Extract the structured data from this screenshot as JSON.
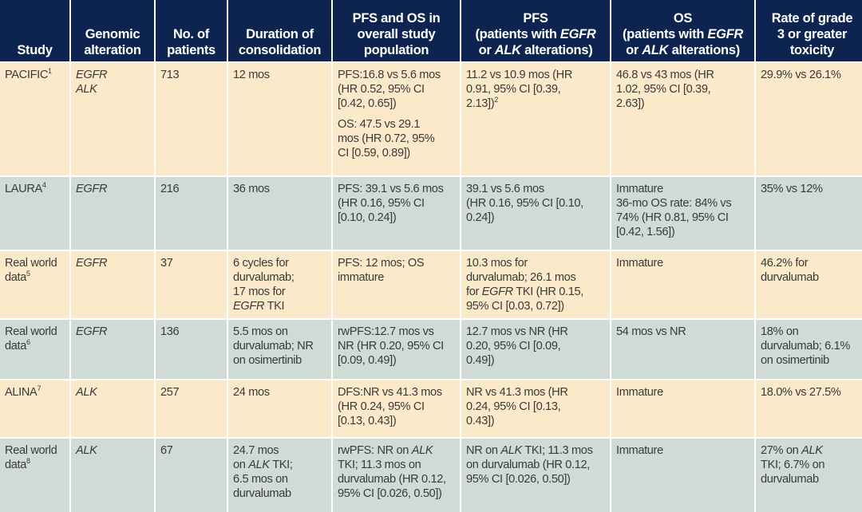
{
  "colors": {
    "header_bg": "#0d2450",
    "row_yellow": "#fbeac9",
    "row_green": "#cfdbd4"
  },
  "header": [
    [
      [
        "Study"
      ]
    ],
    [
      [
        "Genomic"
      ],
      [
        "alteration"
      ]
    ],
    [
      [
        "No. of"
      ],
      [
        "patients"
      ]
    ],
    [
      [
        "Duration of"
      ],
      [
        "consolidation"
      ]
    ],
    [
      [
        "PFS and OS in"
      ],
      [
        "overall study"
      ],
      [
        "population"
      ]
    ],
    [
      [
        "PFS"
      ],
      [
        "(patients with ",
        {
          "t": "EGFR",
          "i": true
        }
      ],
      [
        "or ",
        {
          "t": "ALK",
          "i": true
        },
        " alterations)"
      ]
    ],
    [
      [
        "OS"
      ],
      [
        "(patients with ",
        {
          "t": "EGFR",
          "i": true
        }
      ],
      [
        "or ",
        {
          "t": "ALK",
          "i": true
        },
        " alterations)"
      ]
    ],
    [
      [
        "Rate of grade"
      ],
      [
        "3 or greater"
      ],
      [
        "toxicity"
      ]
    ]
  ],
  "rows": [
    {
      "cells": [
        [
          [
            [
              "PACIFIC",
              {
                "t": "1",
                "sup": true
              }
            ]
          ]
        ],
        [
          [
            [
              {
                "t": "EGFR",
                "i": true
              }
            ],
            [
              {
                "t": "ALK",
                "i": true
              }
            ]
          ]
        ],
        [
          [
            [
              "713"
            ]
          ]
        ],
        [
          [
            [
              "12 mos"
            ]
          ]
        ],
        [
          [
            [
              "PFS:16.8 vs 5.6 mos"
            ],
            [
              "(HR 0.52, 95% CI"
            ],
            [
              "[0.42, 0.65])"
            ]
          ],
          [
            [
              "OS: 47.5 vs 29.1"
            ],
            [
              "mos (HR 0.72, 95%"
            ],
            [
              "CI [0.59, 0.89])"
            ]
          ]
        ],
        [
          [
            [
              "11.2 vs 10.9 mos (HR"
            ],
            [
              "0.91, 95% CI [0.39,"
            ],
            [
              "2.13])",
              {
                "t": "2",
                "sup": true
              }
            ]
          ]
        ],
        [
          [
            [
              "46.8 vs 43 mos (HR"
            ],
            [
              "1.02, 95% CI [0.39,"
            ],
            [
              "2.63])"
            ]
          ]
        ],
        [
          [
            [
              "29.9% vs 26.1%"
            ]
          ]
        ]
      ]
    },
    {
      "cells": [
        [
          [
            [
              "LAURA",
              {
                "t": "4",
                "sup": true
              }
            ]
          ]
        ],
        [
          [
            [
              {
                "t": "EGFR",
                "i": true
              }
            ]
          ]
        ],
        [
          [
            [
              "216"
            ]
          ]
        ],
        [
          [
            [
              "36 mos"
            ]
          ]
        ],
        [
          [
            [
              "PFS: 39.1 vs 5.6 mos"
            ],
            [
              "(HR 0.16, 95% CI"
            ],
            [
              "[0.10, 0.24])"
            ]
          ]
        ],
        [
          [
            [
              "39.1 vs 5.6 mos"
            ],
            [
              "(HR 0.16, 95% CI [0.10,"
            ],
            [
              "0.24])"
            ]
          ]
        ],
        [
          [
            [
              "Immature"
            ],
            [
              "36-mo OS rate: 84% vs"
            ],
            [
              "74% (HR 0.81, 95% CI"
            ],
            [
              "[0.42, 1.56])"
            ]
          ]
        ],
        [
          [
            [
              "35% vs 12%"
            ]
          ]
        ]
      ]
    },
    {
      "cells": [
        [
          [
            [
              "Real world"
            ],
            [
              "data",
              {
                "t": "5",
                "sup": true
              }
            ]
          ]
        ],
        [
          [
            [
              {
                "t": "EGFR",
                "i": true
              }
            ]
          ]
        ],
        [
          [
            [
              "37"
            ]
          ]
        ],
        [
          [
            [
              "6 cycles for"
            ],
            [
              "durvalumab;"
            ],
            [
              "17 mos for"
            ],
            [
              {
                "t": "EGFR",
                "i": true
              },
              " TKI"
            ]
          ]
        ],
        [
          [
            [
              "PFS: 12 mos; OS"
            ],
            [
              "immature"
            ]
          ]
        ],
        [
          [
            [
              "10.3 mos for"
            ],
            [
              "durvalumab; 26.1 mos"
            ],
            [
              "for ",
              {
                "t": "EGFR",
                "i": true
              },
              " TKI (HR 0.15,"
            ],
            [
              "95% CI [0.03, 0.72])"
            ]
          ]
        ],
        [
          [
            [
              "Immature"
            ]
          ]
        ],
        [
          [
            [
              "46.2% for"
            ],
            [
              "durvalumab"
            ]
          ]
        ]
      ]
    },
    {
      "cells": [
        [
          [
            [
              "Real world"
            ],
            [
              "data",
              {
                "t": "6",
                "sup": true
              }
            ]
          ]
        ],
        [
          [
            [
              {
                "t": "EGFR",
                "i": true
              }
            ]
          ]
        ],
        [
          [
            [
              "136"
            ]
          ]
        ],
        [
          [
            [
              "5.5 mos on"
            ],
            [
              "durvalumab; NR"
            ],
            [
              "on osimertinib"
            ]
          ]
        ],
        [
          [
            [
              "rwPFS:12.7 mos vs"
            ],
            [
              "NR (HR 0.20, 95% CI"
            ],
            [
              "[0.09, 0.49])"
            ]
          ]
        ],
        [
          [
            [
              "12.7 mos vs NR (HR"
            ],
            [
              "0.20, 95% CI [0.09,"
            ],
            [
              "0.49])"
            ]
          ]
        ],
        [
          [
            [
              "54 mos vs NR"
            ]
          ]
        ],
        [
          [
            [
              "18% on"
            ],
            [
              "durvalumab; 6.1%"
            ],
            [
              "on osimertinib"
            ]
          ]
        ]
      ]
    },
    {
      "cells": [
        [
          [
            [
              "ALINA",
              {
                "t": "7",
                "sup": true
              }
            ]
          ]
        ],
        [
          [
            [
              {
                "t": "ALK",
                "i": true
              }
            ]
          ]
        ],
        [
          [
            [
              "257"
            ]
          ]
        ],
        [
          [
            [
              "24 mos"
            ]
          ]
        ],
        [
          [
            [
              "DFS:NR vs 41.3 mos"
            ],
            [
              "(HR 0.24, 95% CI"
            ],
            [
              "[0.13, 0.43])"
            ]
          ]
        ],
        [
          [
            [
              "NR vs 41.3 mos (HR"
            ],
            [
              "0.24, 95% CI [0.13,"
            ],
            [
              "0.43])"
            ]
          ]
        ],
        [
          [
            [
              "Immature"
            ]
          ]
        ],
        [
          [
            [
              "18.0% vs 27.5%"
            ]
          ]
        ]
      ]
    },
    {
      "cells": [
        [
          [
            [
              "Real world"
            ],
            [
              "data",
              {
                "t": "8",
                "sup": true
              }
            ]
          ]
        ],
        [
          [
            [
              {
                "t": "ALK",
                "i": true
              }
            ]
          ]
        ],
        [
          [
            [
              "67"
            ]
          ]
        ],
        [
          [
            [
              "24.7 mos"
            ],
            [
              "on ",
              {
                "t": "ALK",
                "i": true
              },
              " TKI;"
            ],
            [
              "6.5 mos on"
            ],
            [
              "durvalumab"
            ]
          ]
        ],
        [
          [
            [
              "rwPFS: NR on ",
              {
                "t": "ALK",
                "i": true
              }
            ],
            [
              "TKI; 11.3 mos on"
            ],
            [
              "durvalumab (HR 0.12,"
            ],
            [
              "95% CI [0.026, 0.50])"
            ]
          ]
        ],
        [
          [
            [
              "NR on ",
              {
                "t": "ALK",
                "i": true
              },
              " TKI; 11.3 mos"
            ],
            [
              "on durvalumab (HR 0.12,"
            ],
            [
              "95% CI [0.026, 0.50])"
            ]
          ]
        ],
        [
          [
            [
              "Immature"
            ]
          ]
        ],
        [
          [
            [
              "27% on ",
              {
                "t": "ALK",
                "i": true
              }
            ],
            [
              "TKI; 6.7% on"
            ],
            [
              "durvalumab"
            ]
          ]
        ]
      ]
    }
  ]
}
